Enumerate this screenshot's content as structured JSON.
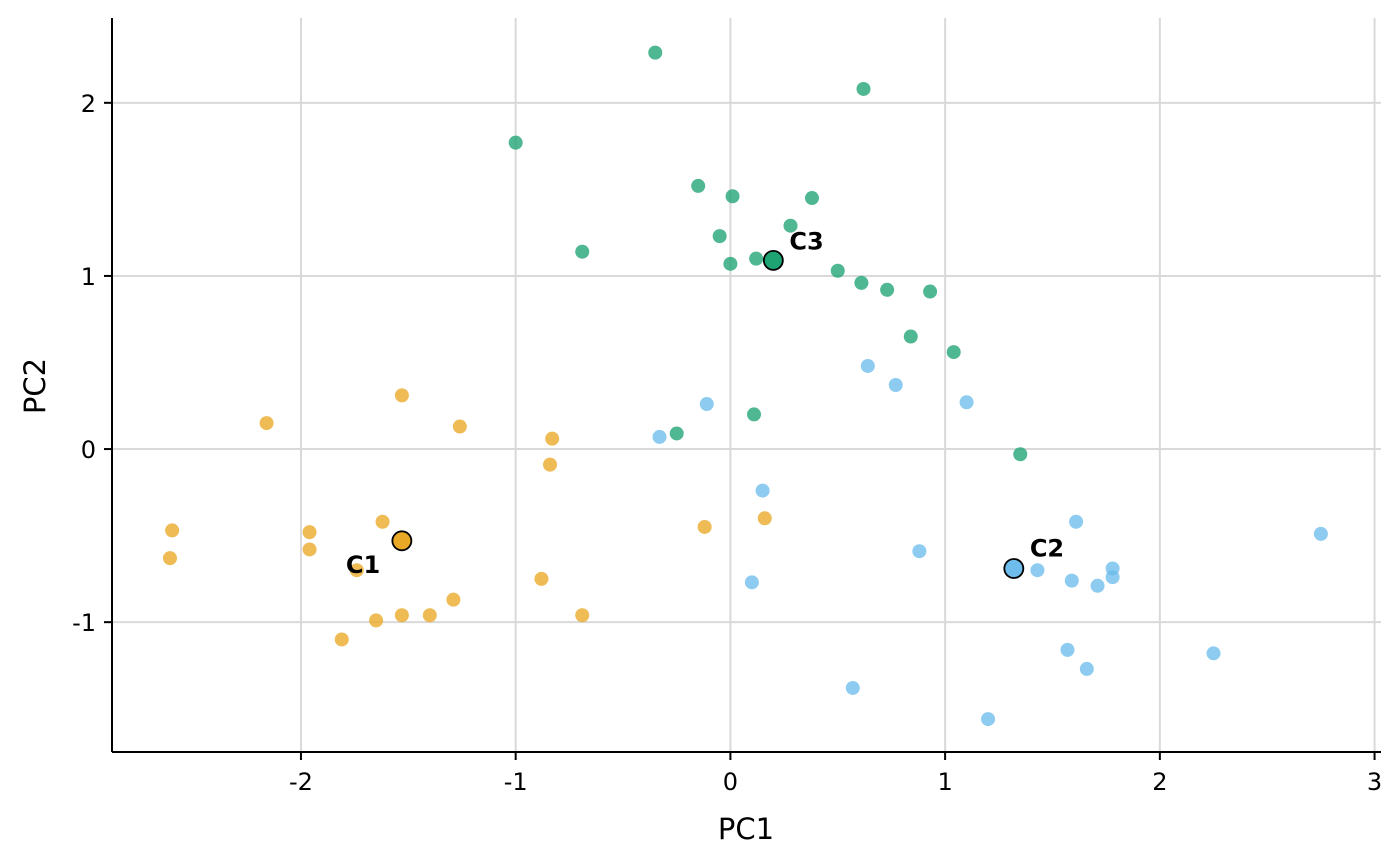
{
  "chart_data": {
    "type": "scatter",
    "title": "",
    "xlabel": "PC1",
    "ylabel": "PC2",
    "xlim": [
      -2.88,
      3.03
    ],
    "ylim": [
      -1.75,
      2.49
    ],
    "xticks": [
      -2,
      -1,
      0,
      1,
      2,
      3
    ],
    "yticks": [
      -1,
      0,
      1,
      2
    ],
    "xtick_labels": [
      "-2",
      "-1",
      "0",
      "1",
      "2",
      "3"
    ],
    "ytick_labels": [
      "-1",
      "0",
      "1",
      "2"
    ],
    "grid": true,
    "legend": "none",
    "series": [
      {
        "name": "C1",
        "color": "#E9A825",
        "points": [
          [
            -2.6,
            -0.47
          ],
          [
            -2.61,
            -0.63
          ],
          [
            -2.16,
            0.15
          ],
          [
            -1.96,
            -0.48
          ],
          [
            -1.96,
            -0.58
          ],
          [
            -1.53,
            0.31
          ],
          [
            -1.62,
            -0.42
          ],
          [
            -1.74,
            -0.7
          ],
          [
            -1.26,
            0.13
          ],
          [
            -0.83,
            0.06
          ],
          [
            -0.84,
            -0.09
          ],
          [
            -0.88,
            -0.75
          ],
          [
            -0.69,
            -0.96
          ],
          [
            -1.29,
            -0.87
          ],
          [
            -1.4,
            -0.96
          ],
          [
            -1.53,
            -0.96
          ],
          [
            -1.65,
            -0.99
          ],
          [
            -1.81,
            -1.1
          ],
          [
            -0.12,
            -0.45
          ],
          [
            0.16,
            -0.4
          ]
        ],
        "centroid": [
          -1.53,
          -0.53
        ]
      },
      {
        "name": "C2",
        "color": "#6DBCEC",
        "points": [
          [
            -0.33,
            0.07
          ],
          [
            -0.11,
            0.26
          ],
          [
            0.15,
            -0.24
          ],
          [
            0.1,
            -0.77
          ],
          [
            0.64,
            0.48
          ],
          [
            0.77,
            0.37
          ],
          [
            1.1,
            0.27
          ],
          [
            0.88,
            -0.59
          ],
          [
            0.57,
            -1.38
          ],
          [
            1.2,
            -1.56
          ],
          [
            1.43,
            -0.7
          ],
          [
            1.59,
            -0.76
          ],
          [
            1.61,
            -0.42
          ],
          [
            1.71,
            -0.79
          ],
          [
            1.78,
            -0.69
          ],
          [
            1.78,
            -0.74
          ],
          [
            1.57,
            -1.16
          ],
          [
            1.66,
            -1.27
          ],
          [
            2.25,
            -1.18
          ],
          [
            2.75,
            -0.49
          ]
        ],
        "centroid": [
          1.32,
          -0.69
        ]
      },
      {
        "name": "C3",
        "color": "#1EA373",
        "points": [
          [
            -0.35,
            2.29
          ],
          [
            0.62,
            2.08
          ],
          [
            -1.0,
            1.77
          ],
          [
            -0.15,
            1.52
          ],
          [
            0.01,
            1.46
          ],
          [
            0.38,
            1.45
          ],
          [
            0.28,
            1.29
          ],
          [
            -0.05,
            1.23
          ],
          [
            0.12,
            1.1
          ],
          [
            0.0,
            1.07
          ],
          [
            -0.69,
            1.14
          ],
          [
            0.5,
            1.03
          ],
          [
            0.61,
            0.96
          ],
          [
            0.73,
            0.92
          ],
          [
            0.93,
            0.91
          ],
          [
            0.84,
            0.65
          ],
          [
            1.04,
            0.56
          ],
          [
            0.11,
            0.2
          ],
          [
            -0.25,
            0.09
          ],
          [
            1.35,
            -0.03
          ]
        ],
        "centroid": [
          0.2,
          1.09
        ]
      }
    ]
  }
}
